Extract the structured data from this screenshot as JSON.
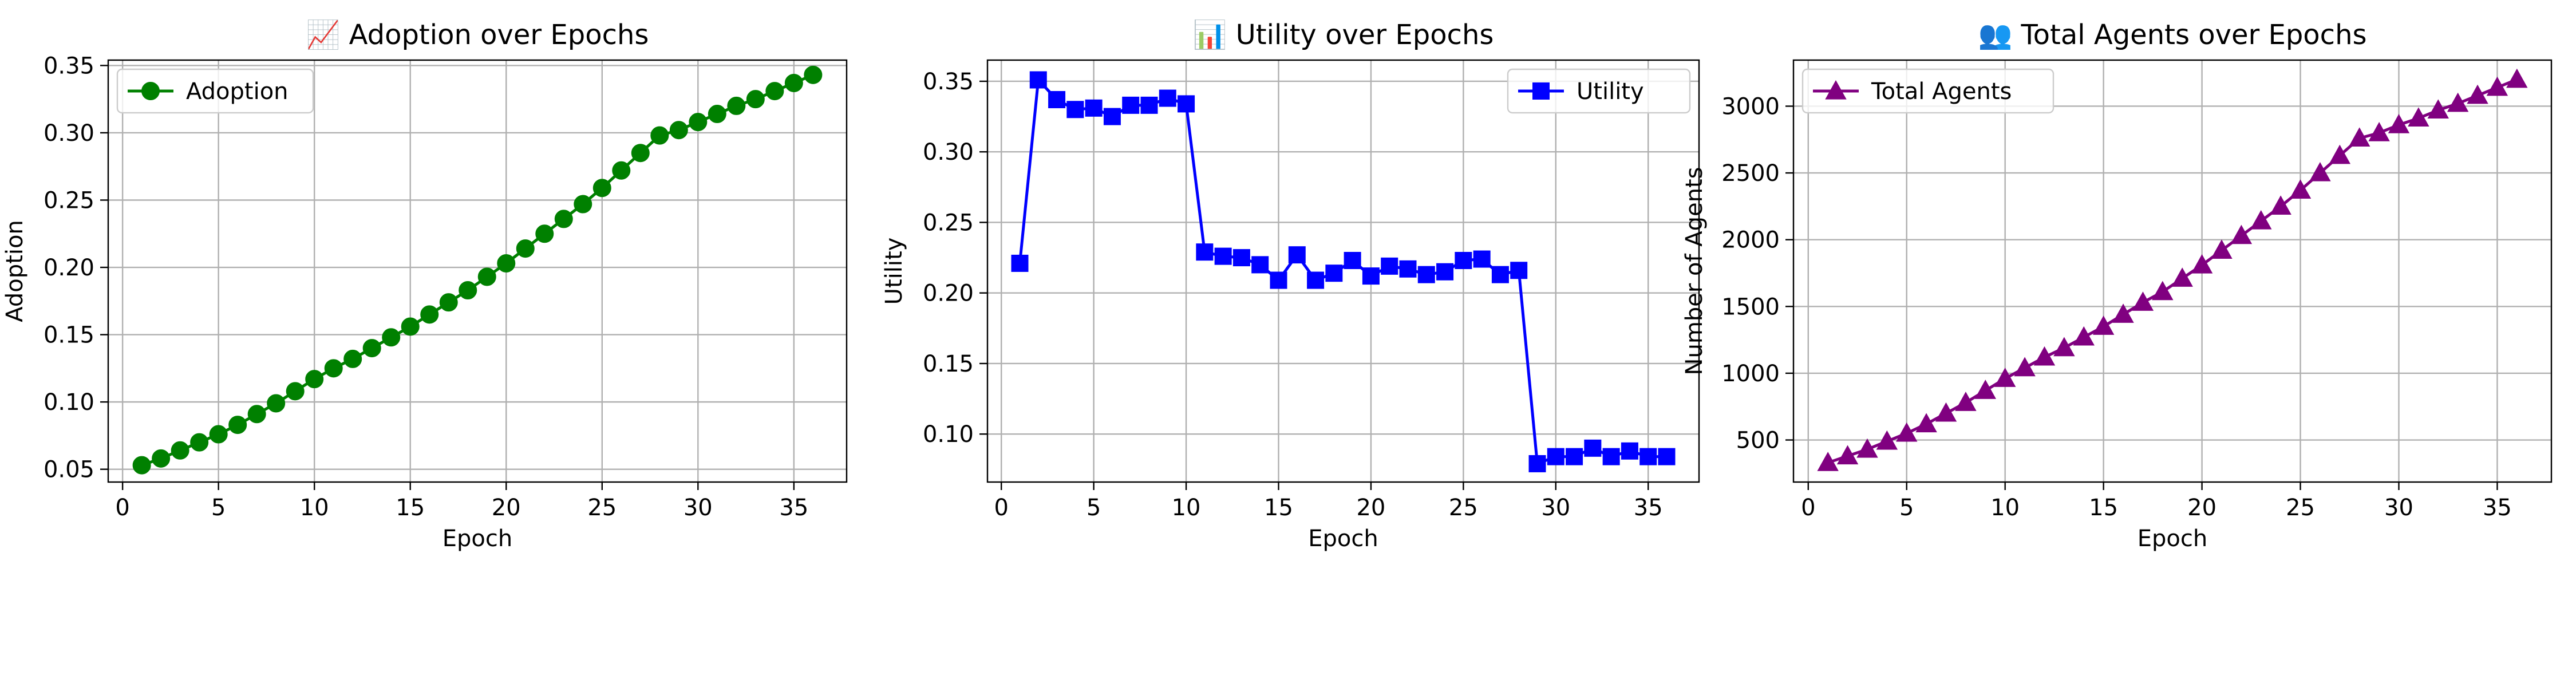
{
  "chart_data": [
    {
      "type": "line",
      "title": "📈 Adoption over Epochs",
      "xlabel": "Epoch",
      "ylabel": "Adoption",
      "xlim": [
        -0.75,
        37.75
      ],
      "ylim": [
        0.0405,
        0.354
      ],
      "xticks": [
        0,
        5,
        10,
        15,
        20,
        25,
        30,
        35
      ],
      "yticks": [
        0.05,
        0.1,
        0.15,
        0.2,
        0.25,
        0.3,
        0.35
      ],
      "ytick_decimals": 2,
      "grid": true,
      "legend_position": "top-left",
      "series": [
        {
          "name": "Adoption",
          "color": "#008000",
          "marker": "circle",
          "x": [
            1,
            2,
            3,
            4,
            5,
            6,
            7,
            8,
            9,
            10,
            11,
            12,
            13,
            14,
            15,
            16,
            17,
            18,
            19,
            20,
            21,
            22,
            23,
            24,
            25,
            26,
            27,
            28,
            29,
            30,
            31,
            32,
            33,
            34,
            35,
            36
          ],
          "y": [
            0.053,
            0.058,
            0.064,
            0.07,
            0.076,
            0.083,
            0.091,
            0.099,
            0.108,
            0.117,
            0.125,
            0.132,
            0.14,
            0.148,
            0.156,
            0.165,
            0.174,
            0.183,
            0.193,
            0.203,
            0.214,
            0.225,
            0.236,
            0.247,
            0.259,
            0.272,
            0.285,
            0.298,
            0.302,
            0.308,
            0.314,
            0.32,
            0.325,
            0.331,
            0.337,
            0.343
          ]
        }
      ]
    },
    {
      "type": "line",
      "title": "📊 Utility over Epochs",
      "xlabel": "Epoch",
      "ylabel": "Utility",
      "xlim": [
        -0.75,
        37.75
      ],
      "ylim": [
        0.066,
        0.365
      ],
      "xticks": [
        0,
        5,
        10,
        15,
        20,
        25,
        30,
        35
      ],
      "yticks": [
        0.1,
        0.15,
        0.2,
        0.25,
        0.3,
        0.35
      ],
      "ytick_decimals": 2,
      "grid": true,
      "legend_position": "top-right",
      "series": [
        {
          "name": "Utility",
          "color": "#0000ff",
          "marker": "square",
          "x": [
            1,
            2,
            3,
            4,
            5,
            6,
            7,
            8,
            9,
            10,
            11,
            12,
            13,
            14,
            15,
            16,
            17,
            18,
            19,
            20,
            21,
            22,
            23,
            24,
            25,
            26,
            27,
            28,
            29,
            30,
            31,
            32,
            33,
            34,
            35,
            36
          ],
          "y": [
            0.221,
            0.351,
            0.337,
            0.33,
            0.331,
            0.325,
            0.333,
            0.333,
            0.338,
            0.334,
            0.229,
            0.226,
            0.225,
            0.22,
            0.209,
            0.227,
            0.209,
            0.214,
            0.223,
            0.212,
            0.219,
            0.217,
            0.213,
            0.215,
            0.223,
            0.224,
            0.213,
            0.216,
            0.079,
            0.084,
            0.084,
            0.09,
            0.084,
            0.088,
            0.084,
            0.084
          ]
        }
      ]
    },
    {
      "type": "line",
      "title": "👥 Total Agents over Epochs",
      "xlabel": "Epoch",
      "ylabel": "Number of Agents",
      "xlim": [
        -0.75,
        37.75
      ],
      "ylim": [
        185,
        3345
      ],
      "xticks": [
        0,
        5,
        10,
        15,
        20,
        25,
        30,
        35
      ],
      "yticks": [
        500,
        1000,
        1500,
        2000,
        2500,
        3000
      ],
      "ytick_decimals": 0,
      "grid": true,
      "legend_position": "top-left",
      "series": [
        {
          "name": "Total Agents",
          "color": "#800080",
          "marker": "triangle",
          "x": [
            1,
            2,
            3,
            4,
            5,
            6,
            7,
            8,
            9,
            10,
            11,
            12,
            13,
            14,
            15,
            16,
            17,
            18,
            19,
            20,
            21,
            22,
            23,
            24,
            25,
            26,
            27,
            28,
            29,
            30,
            31,
            32,
            33,
            34,
            35,
            36
          ],
          "y": [
            330,
            380,
            430,
            490,
            550,
            620,
            700,
            780,
            870,
            960,
            1040,
            1120,
            1190,
            1270,
            1350,
            1440,
            1530,
            1610,
            1710,
            1810,
            1920,
            2030,
            2140,
            2250,
            2370,
            2500,
            2630,
            2760,
            2800,
            2860,
            2910,
            2970,
            3020,
            3080,
            3140,
            3200
          ]
        }
      ]
    }
  ]
}
